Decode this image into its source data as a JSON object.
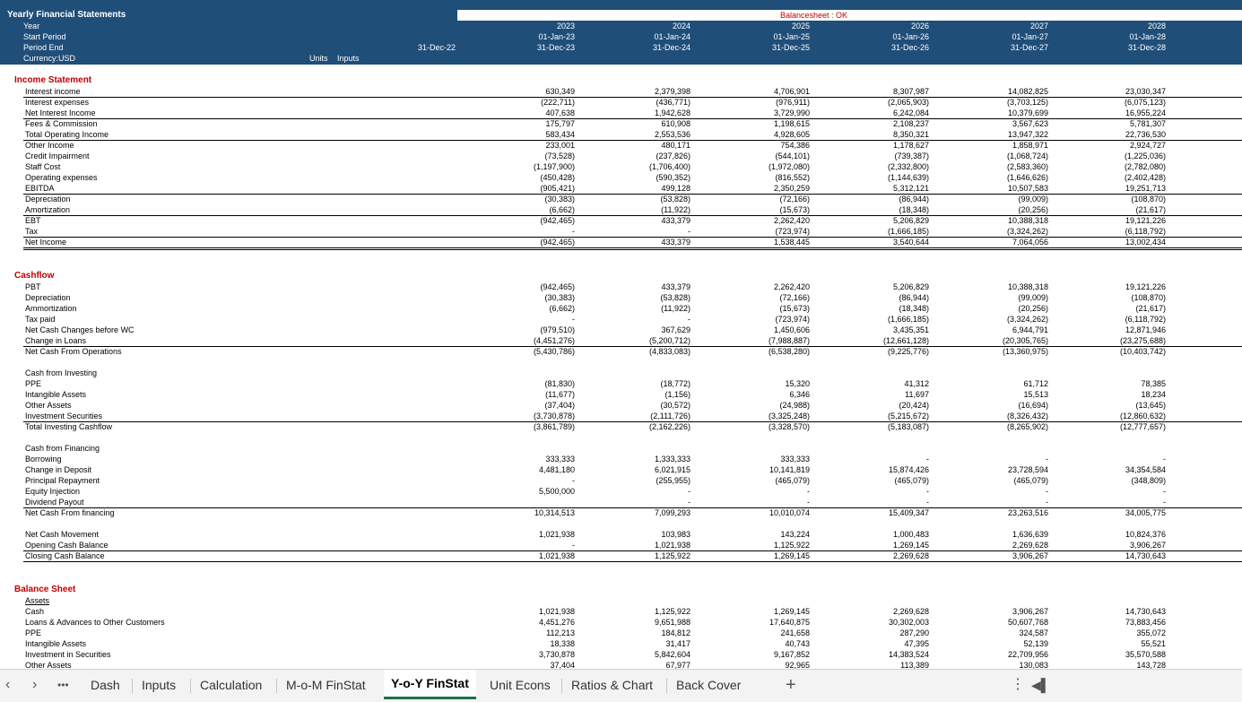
{
  "header": {
    "title": "Yearly Financial Statements",
    "year_label": "Year",
    "start_label": "Start Period",
    "end_label": "Period End",
    "currency_label": "Currency:USD",
    "units_label": "Units",
    "inputs_label": "Inputs",
    "base_end": "31-Dec-22",
    "balancesheet_check": "Balancesheet : OK",
    "years": [
      "2023",
      "2024",
      "2025",
      "2026",
      "2027",
      "2028"
    ],
    "starts": [
      "01-Jan-23",
      "01-Jan-24",
      "01-Jan-25",
      "01-Jan-26",
      "01-Jan-27",
      "01-Jan-28"
    ],
    "ends": [
      "31-Dec-23",
      "31-Dec-24",
      "31-Dec-25",
      "31-Dec-26",
      "31-Dec-27",
      "31-Dec-28"
    ]
  },
  "income_statement": {
    "title": "Income Statement",
    "rows": [
      {
        "label": "Interest income",
        "values": [
          "630,349",
          "2,379,398",
          "4,706,901",
          "8,307,987",
          "14,082,825",
          "23,030,347"
        ]
      },
      {
        "label": "Interest expenses",
        "values": [
          "(222,711)",
          "(436,771)",
          "(976,911)",
          "(2,065,903)",
          "(3,703,125)",
          "(6,075,123)"
        ]
      },
      {
        "label": "Net Interest Income",
        "values": [
          "407,638",
          "1,942,628",
          "3,729,990",
          "6,242,084",
          "10,379,699",
          "16,955,224"
        ]
      },
      {
        "label": "Fees & Commission",
        "values": [
          "175,797",
          "610,908",
          "1,198,615",
          "2,108,237",
          "3,567,623",
          "5,781,307"
        ]
      },
      {
        "label": "Total Operating Income",
        "values": [
          "583,434",
          "2,553,536",
          "4,928,605",
          "8,350,321",
          "13,947,322",
          "22,736,530"
        ]
      },
      {
        "label": "Other Income",
        "values": [
          "233,001",
          "480,171",
          "754,386",
          "1,178,627",
          "1,858,971",
          "2,924,727"
        ]
      },
      {
        "label": "Credit Impairment",
        "values": [
          "(73,528)",
          "(237,826)",
          "(544,101)",
          "(739,387)",
          "(1,068,724)",
          "(1,225,036)"
        ]
      },
      {
        "label": "Staff Cost",
        "values": [
          "(1,197,900)",
          "(1,706,400)",
          "(1,972,080)",
          "(2,332,800)",
          "(2,583,360)",
          "(2,782,080)"
        ]
      },
      {
        "label": "Operating expenses",
        "values": [
          "(450,428)",
          "(590,352)",
          "(816,552)",
          "(1,144,639)",
          "(1,646,626)",
          "(2,402,428)"
        ]
      },
      {
        "label": "EBITDA",
        "values": [
          "(905,421)",
          "499,128",
          "2,350,259",
          "5,312,121",
          "10,507,583",
          "19,251,713"
        ]
      },
      {
        "label": "Depreciation",
        "values": [
          "(30,383)",
          "(53,828)",
          "(72,166)",
          "(86,944)",
          "(99,009)",
          "(108,870)"
        ]
      },
      {
        "label": "Amortization",
        "values": [
          "(6,662)",
          "(11,922)",
          "(15,673)",
          "(18,348)",
          "(20,256)",
          "(21,617)"
        ]
      },
      {
        "label": "EBT",
        "values": [
          "(942,465)",
          "433,379",
          "2,262,420",
          "5,206,829",
          "10,388,318",
          "19,121,226"
        ]
      },
      {
        "label": "Tax",
        "values": [
          "-",
          "-",
          "(723,974)",
          "(1,666,185)",
          "(3,324,262)",
          "(6,118,792)"
        ]
      },
      {
        "label": "Net Income",
        "values": [
          "(942,465)",
          "433,379",
          "1,538,445",
          "3,540,644",
          "7,064,056",
          "13,002,434"
        ]
      }
    ]
  },
  "cashflow": {
    "title": "Cashflow",
    "operations": [
      {
        "label": "PBT",
        "values": [
          "(942,465)",
          "433,379",
          "2,262,420",
          "5,206,829",
          "10,388,318",
          "19,121,226"
        ]
      },
      {
        "label": "Depreciation",
        "values": [
          "(30,383)",
          "(53,828)",
          "(72,166)",
          "(86,944)",
          "(99,009)",
          "(108,870)"
        ]
      },
      {
        "label": "Ammortization",
        "values": [
          "(6,662)",
          "(11,922)",
          "(15,673)",
          "(18,348)",
          "(20,256)",
          "(21,617)"
        ]
      },
      {
        "label": "Tax paid",
        "values": [
          "-",
          "-",
          "(723,974)",
          "(1,666,185)",
          "(3,324,262)",
          "(6,118,792)"
        ]
      },
      {
        "label": "Net Cash Changes before  WC",
        "values": [
          "(979,510)",
          "367,629",
          "1,450,606",
          "3,435,351",
          "6,944,791",
          "12,871,946"
        ]
      },
      {
        "label": "Change in Loans",
        "values": [
          "(4,451,276)",
          "(5,200,712)",
          "(7,988,887)",
          "(12,661,128)",
          "(20,305,765)",
          "(23,275,688)"
        ]
      },
      {
        "label": "Net Cash From Operations",
        "values": [
          "(5,430,786)",
          "(4,833,083)",
          "(6,538,280)",
          "(9,225,776)",
          "(13,360,975)",
          "(10,403,742)"
        ]
      }
    ],
    "investing_title": "Cash from Investing",
    "investing": [
      {
        "label": "PPE",
        "values": [
          "(81,830)",
          "(18,772)",
          "15,320",
          "41,312",
          "61,712",
          "78,385"
        ]
      },
      {
        "label": "Intangible Assets",
        "values": [
          "(11,677)",
          "(1,156)",
          "6,346",
          "11,697",
          "15,513",
          "18,234"
        ]
      },
      {
        "label": "Other Assets",
        "values": [
          "(37,404)",
          "(30,572)",
          "(24,988)",
          "(20,424)",
          "(16,694)",
          "(13,645)"
        ]
      },
      {
        "label": "Investment Securities",
        "values": [
          "(3,730,878)",
          "(2,111,726)",
          "(3,325,248)",
          "(5,215,672)",
          "(8,326,432)",
          "(12,860,632)"
        ]
      },
      {
        "label": "Total Investing Cashflow",
        "values": [
          "(3,861,789)",
          "(2,162,226)",
          "(3,328,570)",
          "(5,183,087)",
          "(8,265,902)",
          "(12,777,657)"
        ]
      }
    ],
    "financing_title": "Cash from Financing",
    "financing": [
      {
        "label": "Borrowing",
        "values": [
          "333,333",
          "1,333,333",
          "333,333",
          "-",
          "-",
          "-"
        ]
      },
      {
        "label": "Change in Deposit",
        "values": [
          "4,481,180",
          "6,021,915",
          "10,141,819",
          "15,874,426",
          "23,728,594",
          "34,354,584"
        ]
      },
      {
        "label": "Principal Repayment",
        "values": [
          "-",
          "(255,955)",
          "(465,079)",
          "(465,079)",
          "(465,079)",
          "(348,809)"
        ]
      },
      {
        "label": "Equity Injection",
        "values": [
          "5,500,000",
          "-",
          "-",
          "-",
          "-",
          "-"
        ]
      },
      {
        "label": "Dividend Payout",
        "values": [
          "",
          "-",
          "-",
          "-",
          "-",
          "-"
        ]
      },
      {
        "label": "Net Cash From financing",
        "values": [
          "10,314,513",
          "7,099,293",
          "10,010,074",
          "15,409,347",
          "23,263,516",
          "34,005,775"
        ]
      }
    ],
    "movement": [
      {
        "label": "Net Cash Movement",
        "values": [
          "1,021,938",
          "103,983",
          "143,224",
          "1,000,483",
          "1,636,639",
          "10,824,376"
        ]
      },
      {
        "label": "Opening Cash Balance",
        "values": [
          "-",
          "1,021,938",
          "1,125,922",
          "1,269,145",
          "2,269,628",
          "3,906,267"
        ]
      },
      {
        "label": "Closing Cash Balance",
        "values": [
          "1,021,938",
          "1,125,922",
          "1,269,145",
          "2,269,628",
          "3,906,267",
          "14,730,643"
        ]
      }
    ]
  },
  "balance_sheet": {
    "title": "Balance Sheet",
    "assets_label": "Assets",
    "rows": [
      {
        "label": "Cash",
        "values": [
          "1,021,938",
          "1,125,922",
          "1,269,145",
          "2,269,628",
          "3,906,267",
          "14,730,643"
        ]
      },
      {
        "label": "Loans & Advances to Other Customers",
        "values": [
          "4,451,276",
          "9,651,988",
          "17,640,875",
          "30,302,003",
          "50,607,768",
          "73,883,456"
        ]
      },
      {
        "label": "PPE",
        "values": [
          "112,213",
          "184,812",
          "241,658",
          "287,290",
          "324,587",
          "355,072"
        ]
      },
      {
        "label": "Intangible Assets",
        "values": [
          "18,338",
          "31,417",
          "40,743",
          "47,395",
          "52,139",
          "55,521"
        ]
      },
      {
        "label": "Investment in Securities",
        "values": [
          "3,730,878",
          "5,842,604",
          "9,167,852",
          "14,383,524",
          "22,709,956",
          "35,570,588"
        ]
      },
      {
        "label": "Other Assets",
        "values": [
          "37,404",
          "67,977",
          "92,965",
          "113,389",
          "130,083",
          "143,728"
        ]
      }
    ]
  },
  "tabs": {
    "items": [
      "Dash",
      "Inputs",
      "Calculation",
      "M-o-M FinStat",
      "Y-o-Y FinStat",
      "Unit Econs",
      "Ratios & Chart",
      "Back Cover"
    ],
    "active": "Y-o-Y FinStat",
    "add": "+",
    "more": "•••",
    "menu": "⋮"
  }
}
